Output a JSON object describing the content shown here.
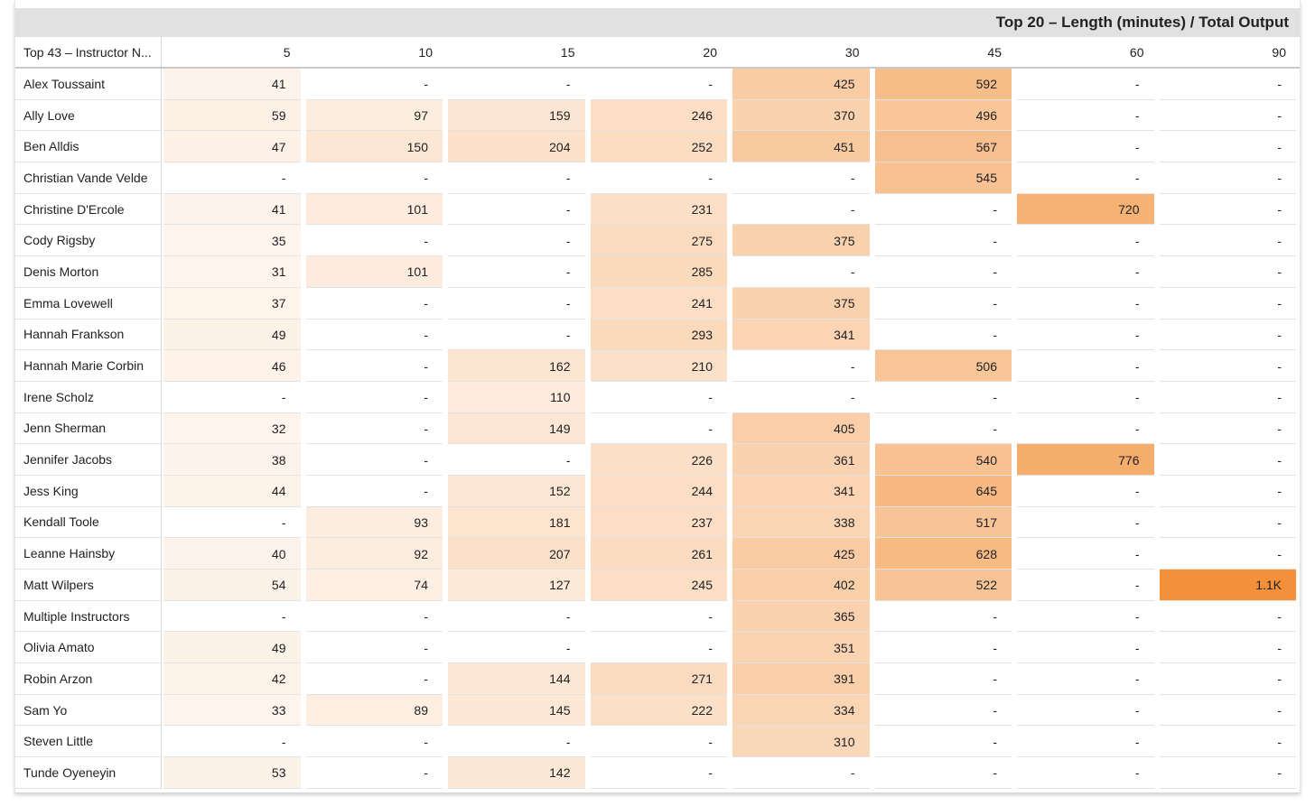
{
  "chart_data": {
    "type": "table",
    "title": "Top 20 – Length (minutes) / Total Output",
    "row_header": "Top 43 – Instructor N...",
    "columns": [
      "5",
      "10",
      "15",
      "20",
      "30",
      "45",
      "60",
      "90"
    ],
    "rows": [
      {
        "name": "Alex Toussaint",
        "values": [
          "41",
          "-",
          "-",
          "-",
          "425",
          "592",
          "-",
          "-"
        ]
      },
      {
        "name": "Ally Love",
        "values": [
          "59",
          "97",
          "159",
          "246",
          "370",
          "496",
          "-",
          "-"
        ]
      },
      {
        "name": "Ben Alldis",
        "values": [
          "47",
          "150",
          "204",
          "252",
          "451",
          "567",
          "-",
          "-"
        ]
      },
      {
        "name": "Christian Vande Velde",
        "values": [
          "-",
          "-",
          "-",
          "-",
          "-",
          "545",
          "-",
          "-"
        ]
      },
      {
        "name": "Christine D'Ercole",
        "values": [
          "41",
          "101",
          "-",
          "231",
          "-",
          "-",
          "720",
          "-"
        ]
      },
      {
        "name": "Cody Rigsby",
        "values": [
          "35",
          "-",
          "-",
          "275",
          "375",
          "-",
          "-",
          "-"
        ]
      },
      {
        "name": "Denis Morton",
        "values": [
          "31",
          "101",
          "-",
          "285",
          "-",
          "-",
          "-",
          "-"
        ]
      },
      {
        "name": "Emma Lovewell",
        "values": [
          "37",
          "-",
          "-",
          "241",
          "375",
          "-",
          "-",
          "-"
        ]
      },
      {
        "name": "Hannah Frankson",
        "values": [
          "49",
          "-",
          "-",
          "293",
          "341",
          "-",
          "-",
          "-"
        ]
      },
      {
        "name": "Hannah Marie Corbin",
        "values": [
          "46",
          "-",
          "162",
          "210",
          "-",
          "506",
          "-",
          "-"
        ]
      },
      {
        "name": "Irene Scholz",
        "values": [
          "-",
          "-",
          "110",
          "-",
          "-",
          "-",
          "-",
          "-"
        ]
      },
      {
        "name": "Jenn Sherman",
        "values": [
          "32",
          "-",
          "149",
          "-",
          "405",
          "-",
          "-",
          "-"
        ]
      },
      {
        "name": "Jennifer Jacobs",
        "values": [
          "38",
          "-",
          "-",
          "226",
          "361",
          "540",
          "776",
          "-"
        ]
      },
      {
        "name": "Jess King",
        "values": [
          "44",
          "-",
          "152",
          "244",
          "341",
          "645",
          "-",
          "-"
        ]
      },
      {
        "name": "Kendall Toole",
        "values": [
          "-",
          "93",
          "181",
          "237",
          "338",
          "517",
          "-",
          "-"
        ]
      },
      {
        "name": "Leanne Hainsby",
        "values": [
          "40",
          "92",
          "207",
          "261",
          "425",
          "628",
          "-",
          "-"
        ]
      },
      {
        "name": "Matt Wilpers",
        "values": [
          "54",
          "74",
          "127",
          "245",
          "402",
          "522",
          "-",
          "1.1K"
        ]
      },
      {
        "name": "Multiple Instructors",
        "values": [
          "-",
          "-",
          "-",
          "-",
          "365",
          "-",
          "-",
          "-"
        ]
      },
      {
        "name": "Olivia Amato",
        "values": [
          "49",
          "-",
          "-",
          "-",
          "351",
          "-",
          "-",
          "-"
        ]
      },
      {
        "name": "Robin Arzon",
        "values": [
          "42",
          "-",
          "144",
          "271",
          "391",
          "-",
          "-",
          "-"
        ]
      },
      {
        "name": "Sam Yo",
        "values": [
          "33",
          "89",
          "145",
          "222",
          "334",
          "-",
          "-",
          "-"
        ]
      },
      {
        "name": "Steven Little",
        "values": [
          "-",
          "-",
          "-",
          "-",
          "310",
          "-",
          "-",
          "-"
        ]
      },
      {
        "name": "Tunde Oyeneyin",
        "values": [
          "53",
          "-",
          "142",
          "-",
          "-",
          "-",
          "-",
          "-"
        ]
      }
    ],
    "heatmap_color": "#f2913a",
    "heatmap_max": 1100
  }
}
